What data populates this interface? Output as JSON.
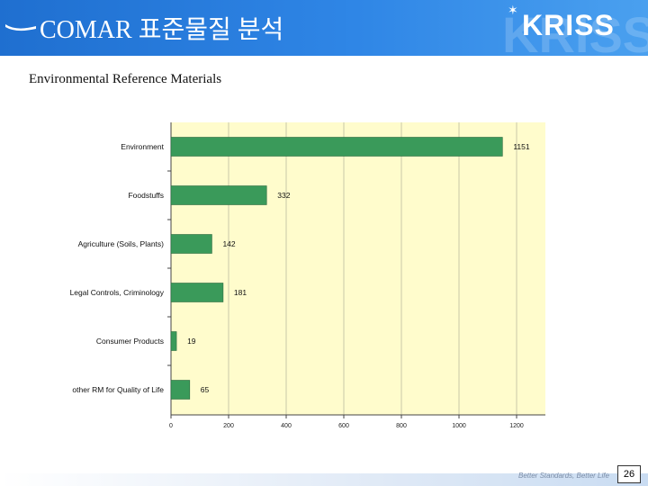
{
  "header": {
    "title": "COMAR 표준물질 분석",
    "logo_text": "KRISS",
    "background_color": "#2a7ee0"
  },
  "slide": {
    "subtitle": "Environmental Reference Materials",
    "slogan": "Better Standards, Better Life",
    "page_number": "26"
  },
  "chart_data": {
    "type": "bar",
    "orientation": "horizontal",
    "categories": [
      "Environment",
      "Foodstuffs",
      "Agriculture (Soils, Plants)",
      "Legal Controls, Criminology",
      "Consumer Products",
      "other RM for Quality of Life"
    ],
    "values": [
      1151,
      332,
      142,
      181,
      19,
      65
    ],
    "value_labels": [
      "1151",
      "332",
      "142",
      "181",
      "19",
      "65"
    ],
    "xlim": [
      0,
      1200
    ],
    "xticks": [
      0,
      200,
      400,
      600,
      800,
      1000,
      1200
    ],
    "xtick_labels": [
      "0",
      "200",
      "400",
      "600",
      "800",
      "1000",
      "1200"
    ],
    "plot_background": "#fffccc",
    "bar_color": "#3a9a5a",
    "grid": true
  }
}
